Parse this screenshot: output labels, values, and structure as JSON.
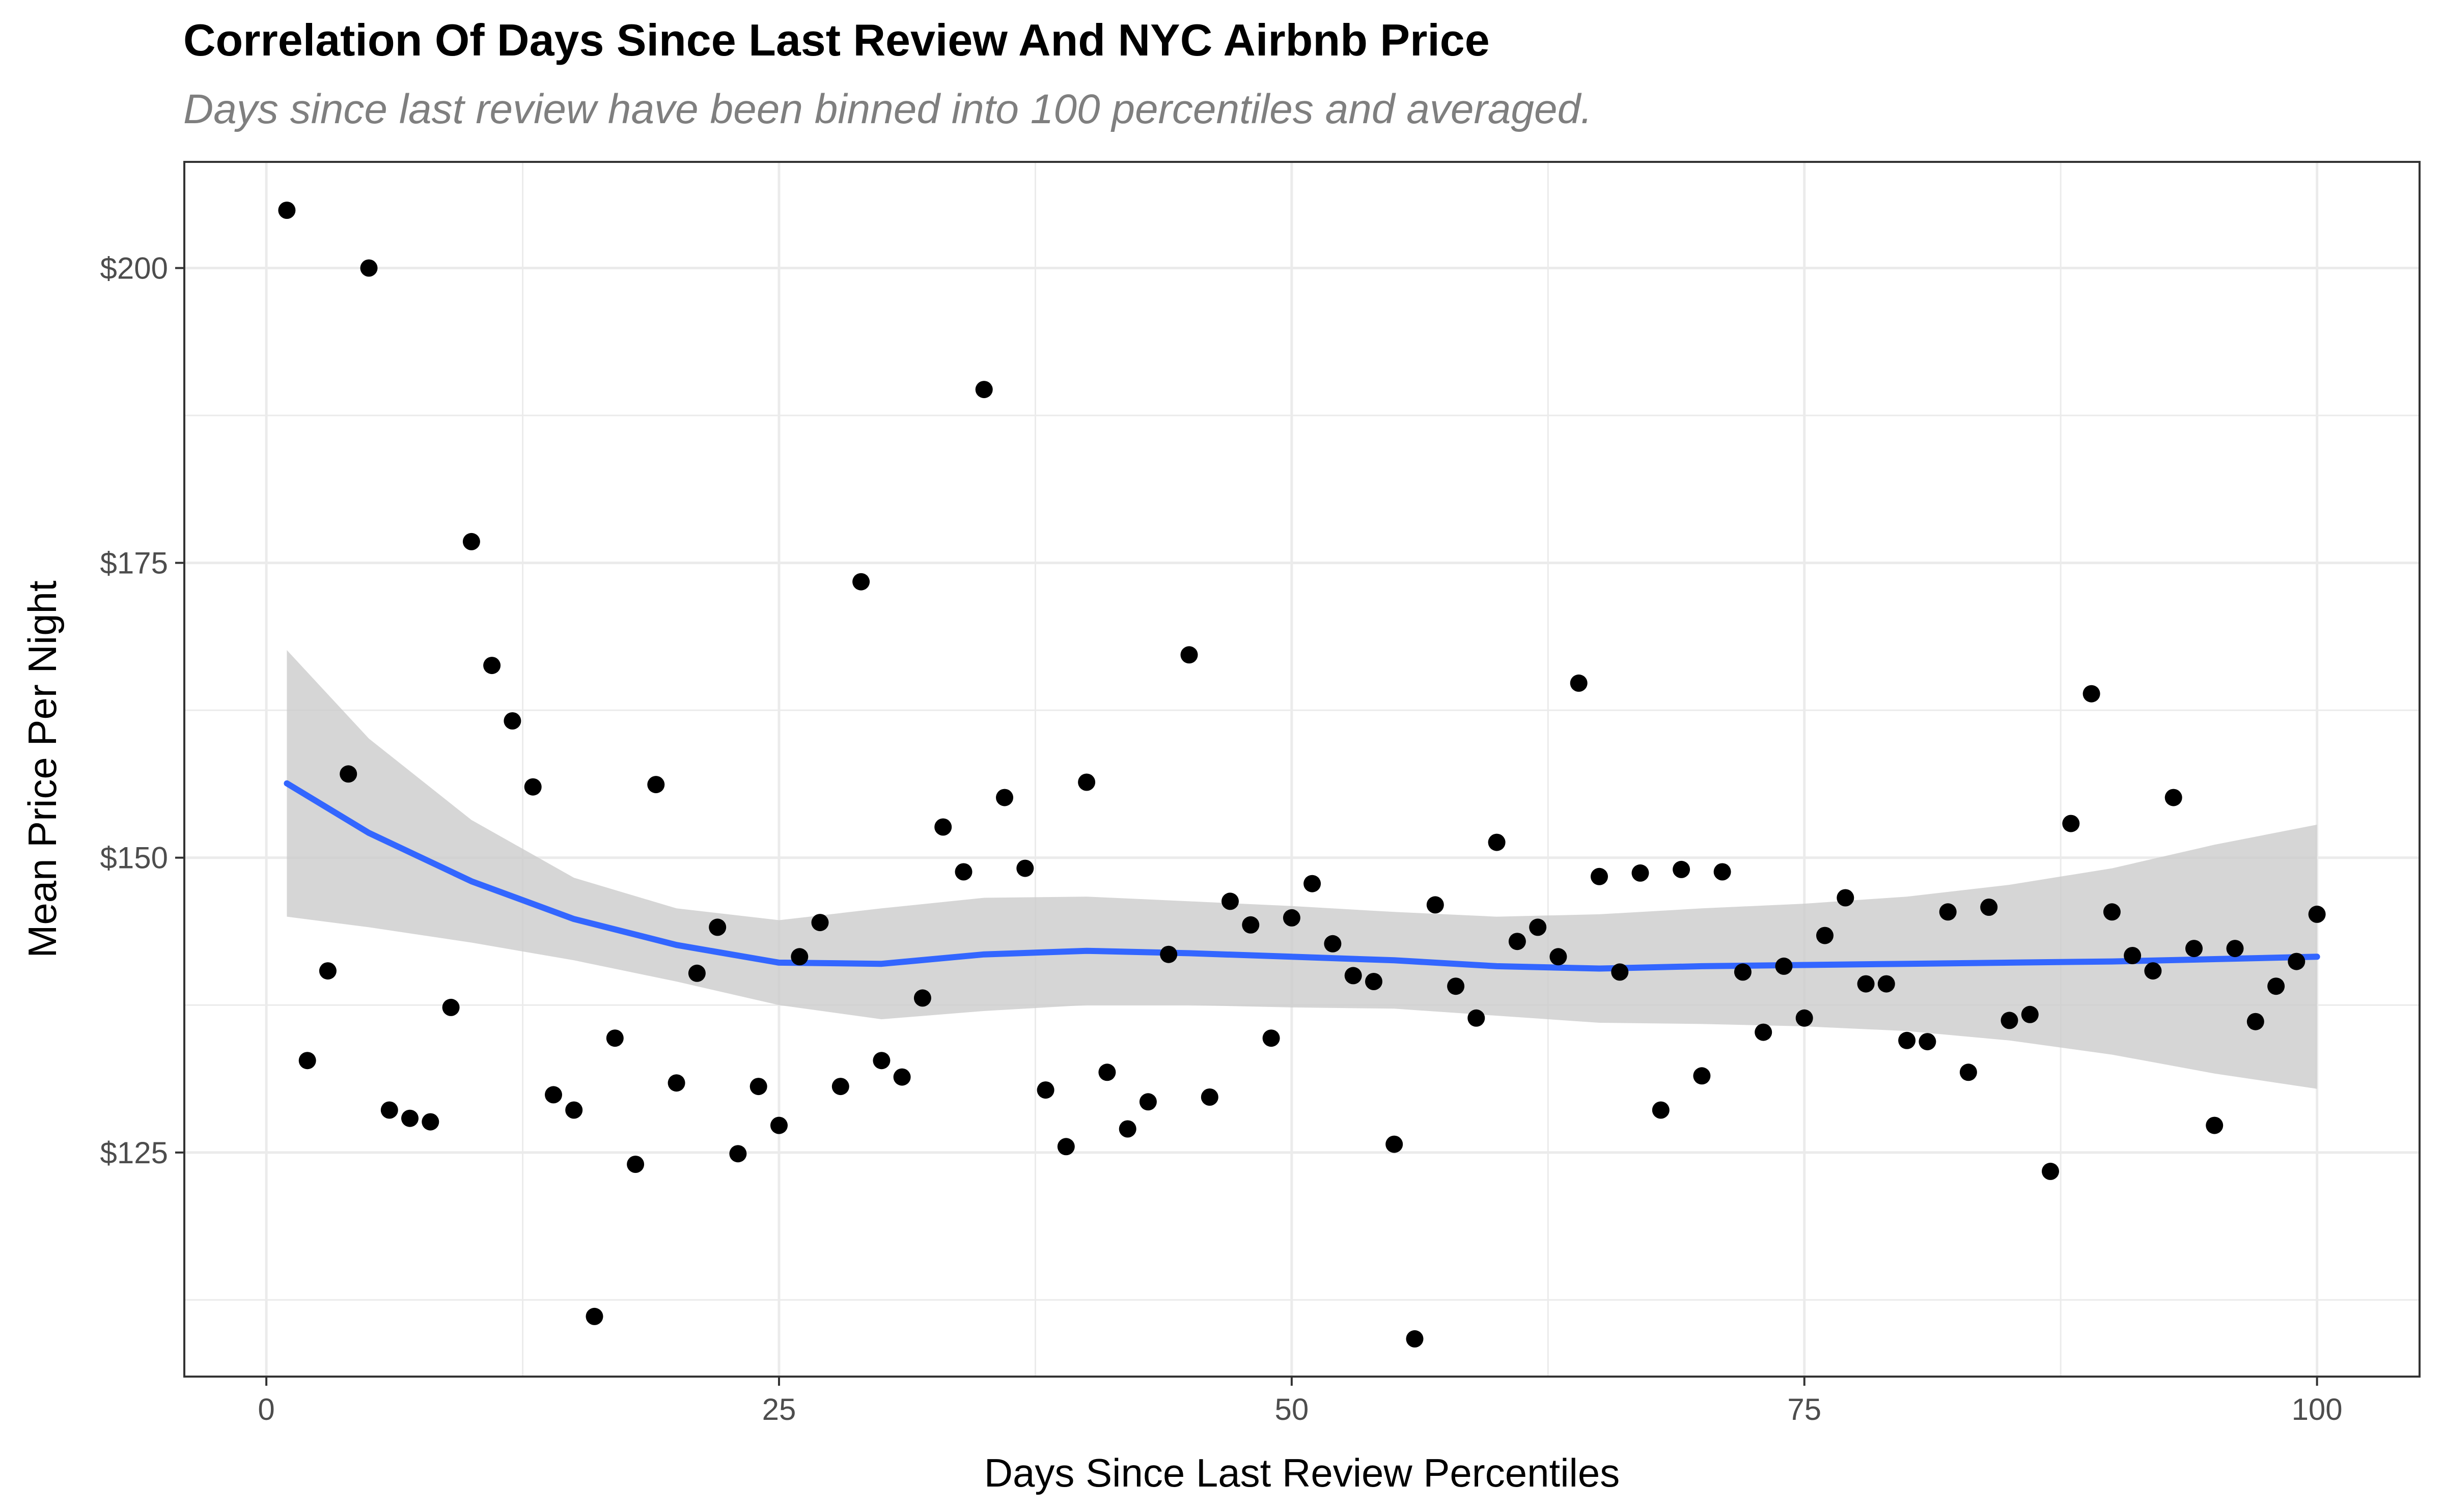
{
  "chart_data": {
    "type": "scatter",
    "title": "Correlation Of Days Since Last Review And NYC Airbnb Price",
    "subtitle": "Days since last review have been binned into 100 percentiles and averaged.",
    "xlabel": "Days Since Last Review Percentiles",
    "ylabel": "Mean Price Per Night",
    "xlim": [
      -4,
      105
    ],
    "ylim": [
      106,
      209
    ],
    "xticks": [
      0,
      25,
      50,
      75,
      100
    ],
    "xtick_labels": [
      "0",
      "25",
      "50",
      "75",
      "100"
    ],
    "yticks": [
      125,
      150,
      175,
      200
    ],
    "ytick_labels": [
      "$125",
      "$150",
      "$175",
      "$200"
    ],
    "x_minor": [
      12.5,
      37.5,
      62.5,
      87.5
    ],
    "y_minor": [
      112.5,
      137.5,
      162.5,
      187.5
    ],
    "grid": true,
    "legend": "none",
    "colors": {
      "points": "#000000",
      "smooth": "#3366ff",
      "band": "#cccccc",
      "grid": "#ebebeb",
      "panel_border": "#333333"
    },
    "points": {
      "x": [
        1,
        2,
        3,
        4,
        5,
        6,
        7,
        8,
        9,
        10,
        11,
        12,
        13,
        14,
        15,
        16,
        17,
        18,
        19,
        20,
        21,
        22,
        23,
        24,
        25,
        26,
        27,
        28,
        29,
        30,
        31,
        32,
        33,
        34,
        35,
        36,
        37,
        38,
        39,
        40,
        41,
        42,
        43,
        44,
        45,
        46,
        47,
        48,
        49,
        50,
        51,
        52,
        53,
        54,
        55,
        56,
        57,
        58,
        59,
        60,
        61,
        62,
        63,
        64,
        65,
        66,
        67,
        68,
        69,
        70,
        71,
        72,
        73,
        74,
        75,
        76,
        77,
        78,
        79,
        80,
        81,
        82,
        83,
        84,
        85,
        86,
        87,
        88,
        89,
        90,
        91,
        92,
        93,
        94,
        95,
        96,
        97,
        98,
        99,
        100
      ],
      "y": [
        204.9,
        132.8,
        140.4,
        157.1,
        200.0,
        128.6,
        127.9,
        127.6,
        137.3,
        176.8,
        166.3,
        161.6,
        156.0,
        129.9,
        128.6,
        111.1,
        134.7,
        124.0,
        156.2,
        130.9,
        140.2,
        144.1,
        124.9,
        130.6,
        127.3,
        141.6,
        144.5,
        130.6,
        173.4,
        132.8,
        131.4,
        138.1,
        152.6,
        148.8,
        189.7,
        155.1,
        149.1,
        130.3,
        125.5,
        156.4,
        131.8,
        127.0,
        129.3,
        141.8,
        167.2,
        129.7,
        146.3,
        144.3,
        134.7,
        144.9,
        147.8,
        142.7,
        140.0,
        139.5,
        125.7,
        109.2,
        146.0,
        139.1,
        136.4,
        151.3,
        142.9,
        144.1,
        141.6,
        164.8,
        148.4,
        140.3,
        148.7,
        128.6,
        149.0,
        131.5,
        148.8,
        140.3,
        135.2,
        140.8,
        136.4,
        143.4,
        146.6,
        139.3,
        139.3,
        134.5,
        134.4,
        145.4,
        131.8,
        145.8,
        136.2,
        136.7,
        123.4,
        152.9,
        163.9,
        145.4,
        141.7,
        140.4,
        155.1,
        142.3,
        127.3,
        142.3,
        136.1,
        139.1,
        141.2,
        145.2
      ]
    },
    "smooth": {
      "x": [
        1,
        5,
        10,
        15,
        20,
        25,
        30,
        35,
        40,
        45,
        50,
        55,
        60,
        65,
        70,
        75,
        80,
        85,
        90,
        95,
        100
      ],
      "y": [
        156.3,
        152.1,
        148.0,
        144.8,
        142.6,
        141.1,
        141.0,
        141.8,
        142.1,
        141.9,
        141.6,
        141.3,
        140.8,
        140.6,
        140.8,
        140.9,
        141.0,
        141.1,
        141.2,
        141.4,
        141.6
      ],
      "lower": [
        145.0,
        144.1,
        142.8,
        141.3,
        139.5,
        137.5,
        136.3,
        137.0,
        137.5,
        137.5,
        137.3,
        137.2,
        136.6,
        136.0,
        135.9,
        135.7,
        135.3,
        134.5,
        133.3,
        131.7,
        130.4
      ],
      "upper": [
        167.6,
        160.1,
        153.2,
        148.3,
        145.7,
        144.7,
        145.7,
        146.6,
        146.7,
        146.3,
        145.9,
        145.4,
        145.0,
        145.2,
        145.7,
        146.1,
        146.7,
        147.7,
        149.1,
        151.1,
        152.8
      ]
    }
  }
}
